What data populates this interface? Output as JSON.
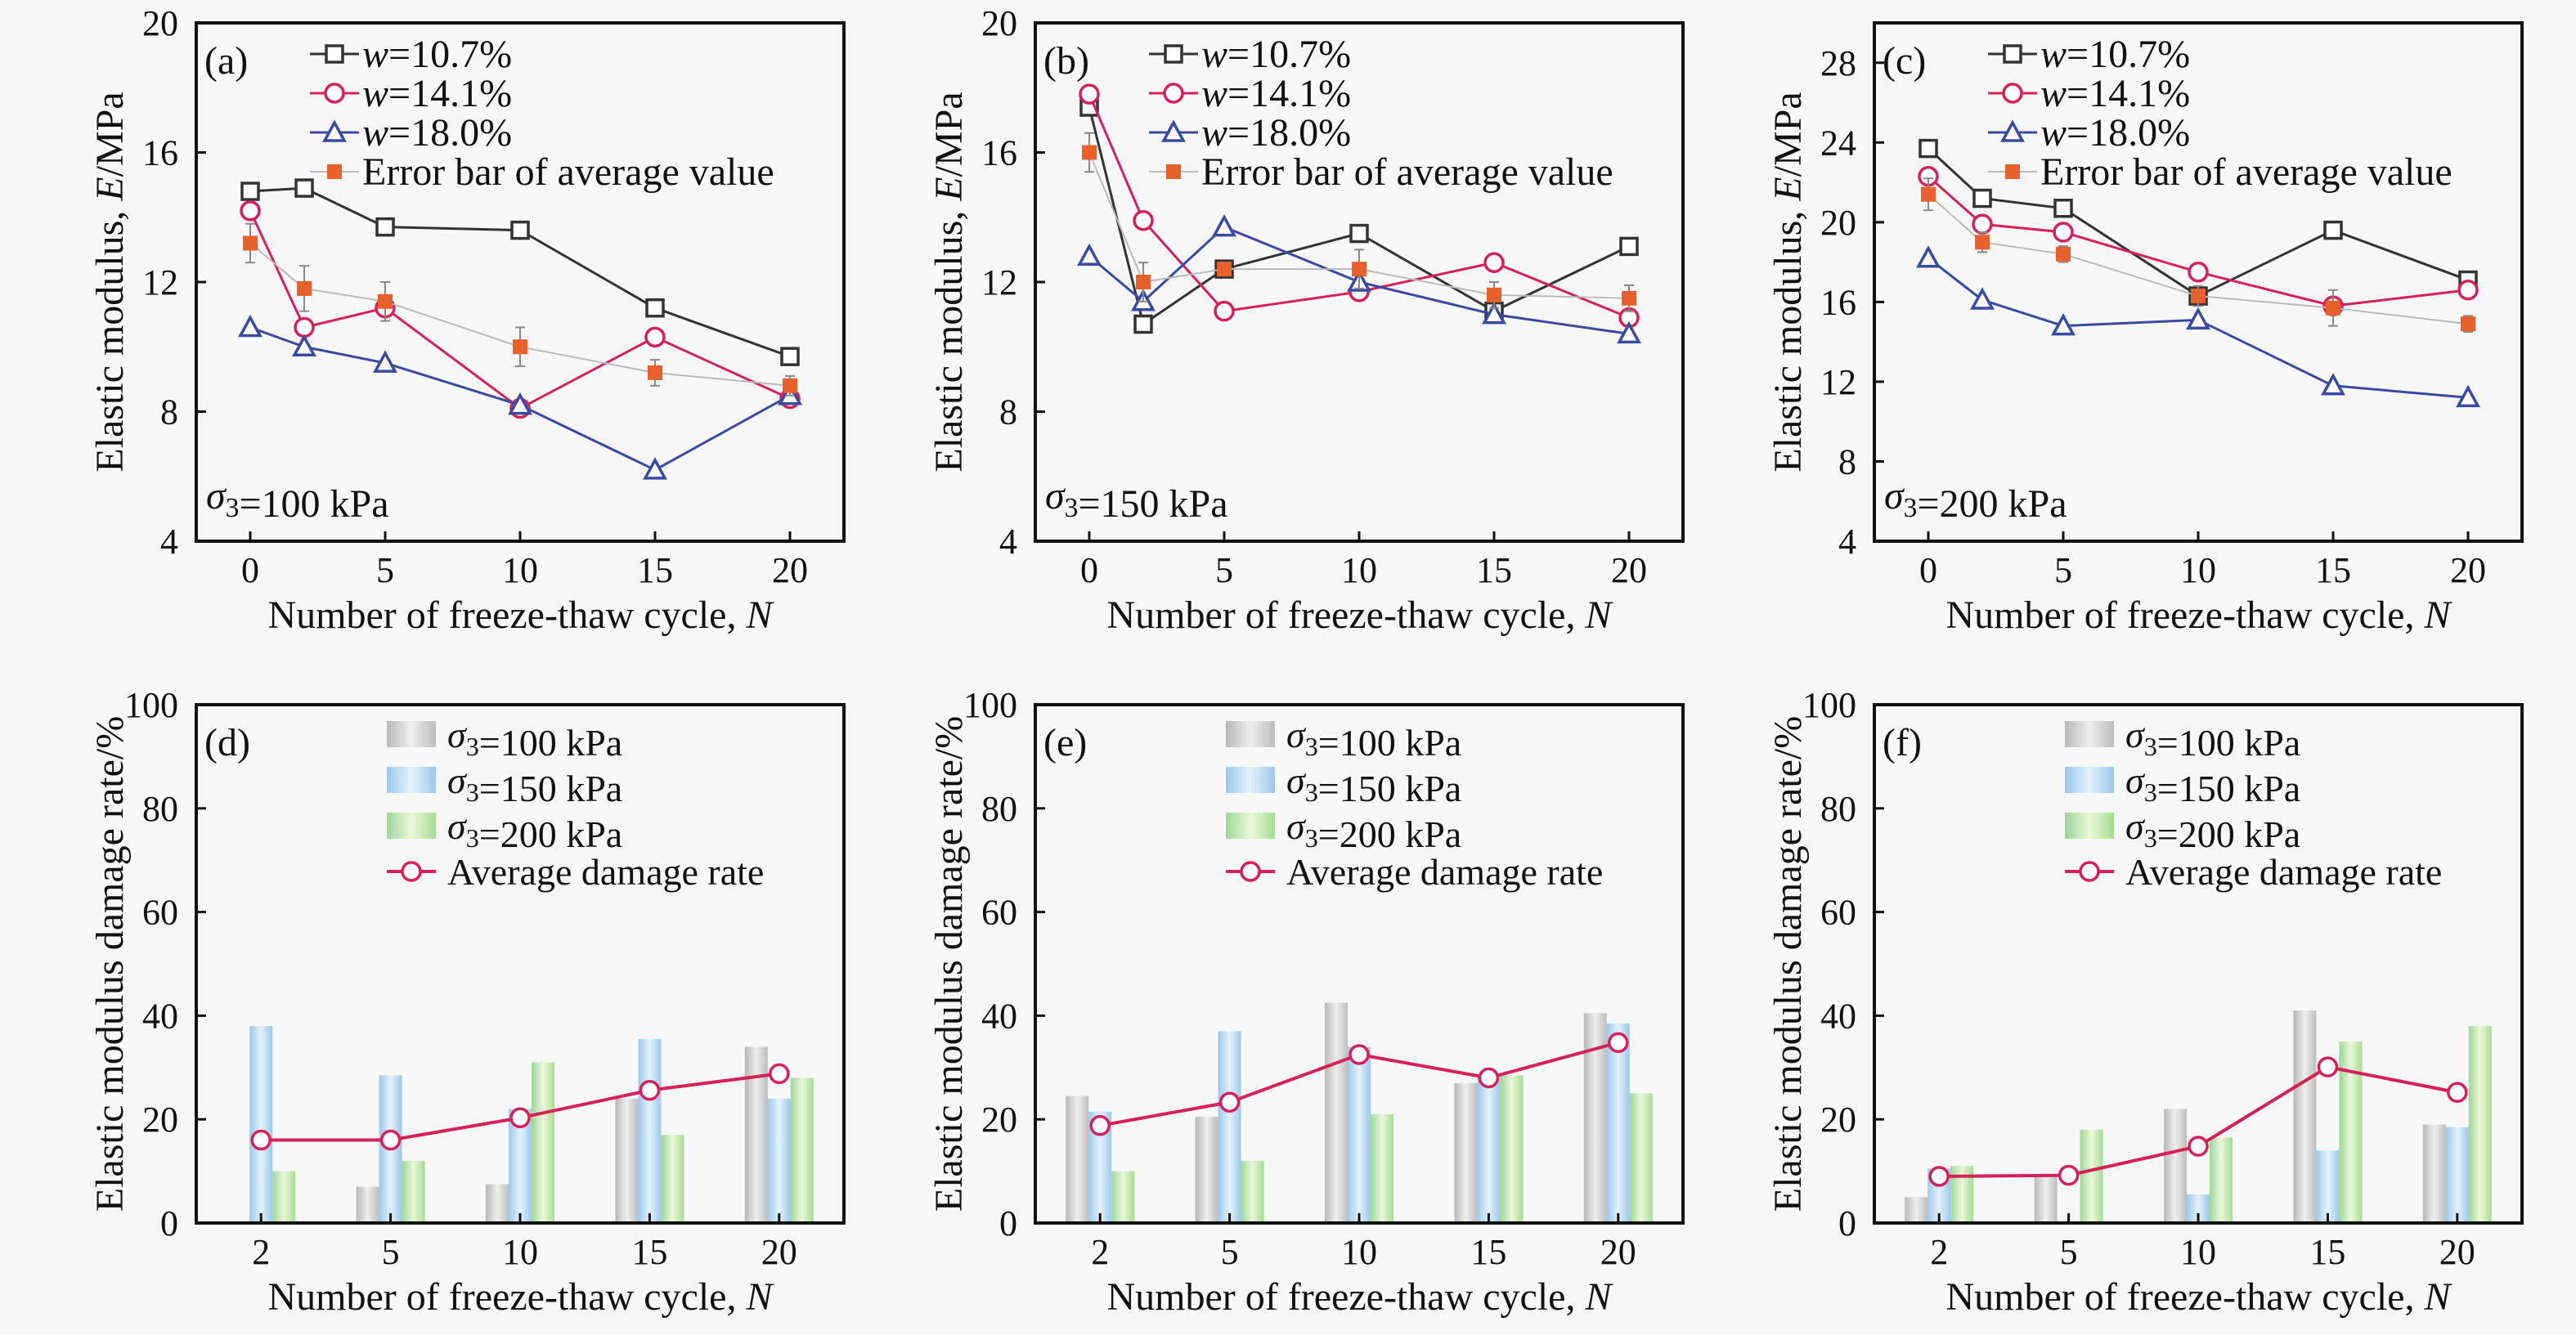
{
  "colors": {
    "w107": "#333333",
    "w141": "#d6205a",
    "w180": "#3a4aa0",
    "average": "#e8602c",
    "average_line": "#d6205a",
    "bar100": "#c8c8c8",
    "bar150": "#a8d4f0",
    "bar200": "#a8e0a0"
  },
  "chart_data": [
    {
      "panel": "(a)",
      "type": "line",
      "ylabel": [
        {
          "t": "Elastic modulus, "
        },
        {
          "t": "E",
          "i": true
        },
        {
          "t": "/MPa"
        }
      ],
      "xlabel": [
        {
          "t": "Number of freeze-thaw cycle, "
        },
        {
          "t": "N",
          "i": true
        }
      ],
      "annotation": [
        {
          "t": "σ",
          "i": true
        },
        {
          "t": "3",
          "sub": true
        },
        {
          "t": "=100 kPa"
        }
      ],
      "x": [
        0,
        2,
        5,
        10,
        15,
        20
      ],
      "xticks": [
        0,
        5,
        10,
        15,
        20
      ],
      "xlim": [
        -2,
        22
      ],
      "ylim": [
        4,
        20
      ],
      "yticks": [
        4,
        8,
        12,
        16,
        20
      ],
      "legend": "top-left",
      "grid": false,
      "series": [
        {
          "name": [
            {
              "t": "w",
              "i": true
            },
            {
              "t": "=10.7%"
            }
          ],
          "marker": "square",
          "color_key": "w107",
          "values": [
            14.8,
            14.9,
            13.7,
            13.6,
            11.2,
            9.7
          ]
        },
        {
          "name": [
            {
              "t": "w",
              "i": true
            },
            {
              "t": "=14.1%"
            }
          ],
          "marker": "circle",
          "color_key": "w141",
          "values": [
            14.2,
            10.6,
            11.2,
            8.1,
            10.3,
            8.4
          ]
        },
        {
          "name": [
            {
              "t": "w",
              "i": true
            },
            {
              "t": "=18.0%"
            }
          ],
          "marker": "triangle",
          "color_key": "w180",
          "values": [
            10.6,
            10.0,
            9.5,
            8.2,
            6.2,
            8.5
          ]
        },
        {
          "name": [
            {
              "t": "Error bar of average value"
            }
          ],
          "marker": "filled-square",
          "color_key": "average",
          "values": [
            13.2,
            11.8,
            11.4,
            10.0,
            9.2,
            8.8
          ],
          "error": [
            0.6,
            0.7,
            0.6,
            0.6,
            0.4,
            0.3
          ]
        }
      ]
    },
    {
      "panel": "(b)",
      "type": "line",
      "ylabel": [
        {
          "t": "Elastic modulus, "
        },
        {
          "t": "E",
          "i": true
        },
        {
          "t": "/MPa"
        }
      ],
      "xlabel": [
        {
          "t": "Number of freeze-thaw cycle, "
        },
        {
          "t": "N",
          "i": true
        }
      ],
      "annotation": [
        {
          "t": "σ",
          "i": true
        },
        {
          "t": "3",
          "sub": true
        },
        {
          "t": "=150 kPa"
        }
      ],
      "x": [
        0,
        2,
        5,
        10,
        15,
        20
      ],
      "xticks": [
        0,
        5,
        10,
        15,
        20
      ],
      "xlim": [
        -2,
        22
      ],
      "ylim": [
        4,
        20
      ],
      "yticks": [
        4,
        8,
        12,
        16,
        20
      ],
      "legend": "top-left",
      "grid": false,
      "series": [
        {
          "name": [
            {
              "t": "w",
              "i": true
            },
            {
              "t": "=10.7%"
            }
          ],
          "marker": "square",
          "color_key": "w107",
          "values": [
            17.4,
            10.7,
            12.4,
            13.5,
            11.1,
            13.1
          ]
        },
        {
          "name": [
            {
              "t": "w",
              "i": true
            },
            {
              "t": "=14.1%"
            }
          ],
          "marker": "circle",
          "color_key": "w141",
          "values": [
            17.8,
            13.9,
            11.1,
            11.7,
            12.6,
            10.9
          ]
        },
        {
          "name": [
            {
              "t": "w",
              "i": true
            },
            {
              "t": "=18.0%"
            }
          ],
          "marker": "triangle",
          "color_key": "w180",
          "values": [
            12.8,
            11.4,
            13.7,
            12.0,
            11.0,
            10.4
          ]
        },
        {
          "name": [
            {
              "t": "Error bar of average value"
            }
          ],
          "marker": "filled-square",
          "color_key": "average",
          "values": [
            16.0,
            12.0,
            12.4,
            12.4,
            11.6,
            11.5
          ],
          "error": [
            0.6,
            0.6,
            0.2,
            0.6,
            0.4,
            0.4
          ]
        }
      ]
    },
    {
      "panel": "(c)",
      "type": "line",
      "ylabel": [
        {
          "t": "Elastic modulus, "
        },
        {
          "t": "E",
          "i": true
        },
        {
          "t": "/MPa"
        }
      ],
      "xlabel": [
        {
          "t": "Number of freeze-thaw cycle, "
        },
        {
          "t": "N",
          "i": true
        }
      ],
      "annotation": [
        {
          "t": "σ",
          "i": true
        },
        {
          "t": "3",
          "sub": true
        },
        {
          "t": "=200 kPa"
        }
      ],
      "x": [
        0,
        2,
        5,
        10,
        15,
        20
      ],
      "xticks": [
        0,
        5,
        10,
        15,
        20
      ],
      "xlim": [
        -2,
        22
      ],
      "ylim": [
        4,
        30
      ],
      "yticks": [
        4,
        8,
        12,
        16,
        20,
        24,
        28
      ],
      "legend": "top-left",
      "grid": false,
      "series": [
        {
          "name": [
            {
              "t": "w",
              "i": true
            },
            {
              "t": "=10.7%"
            }
          ],
          "marker": "square",
          "color_key": "w107",
          "values": [
            23.7,
            21.2,
            20.7,
            16.3,
            19.6,
            17.1
          ]
        },
        {
          "name": [
            {
              "t": "w",
              "i": true
            },
            {
              "t": "=14.1%"
            }
          ],
          "marker": "circle",
          "color_key": "w141",
          "values": [
            22.3,
            19.9,
            19.5,
            17.5,
            15.8,
            16.6
          ]
        },
        {
          "name": [
            {
              "t": "w",
              "i": true
            },
            {
              "t": "=18.0%"
            }
          ],
          "marker": "triangle",
          "color_key": "w180",
          "values": [
            18.2,
            16.1,
            14.8,
            15.1,
            11.8,
            11.2
          ]
        },
        {
          "name": [
            {
              "t": "Error bar of average value"
            }
          ],
          "marker": "filled-square",
          "color_key": "average",
          "values": [
            21.4,
            19.0,
            18.4,
            16.3,
            15.7,
            14.9
          ],
          "error": [
            0.8,
            0.5,
            0.4,
            0.5,
            0.9,
            0.4
          ]
        }
      ]
    },
    {
      "panel": "(d)",
      "type": "bar",
      "ylabel": [
        {
          "t": "Elastic modulus damage rate/%"
        }
      ],
      "xlabel": [
        {
          "t": "Number of freeze-thaw cycle, "
        },
        {
          "t": "N",
          "i": true
        }
      ],
      "categories": [
        "2",
        "5",
        "10",
        "15",
        "20"
      ],
      "ylim": [
        0,
        100
      ],
      "yticks": [
        0,
        20,
        40,
        60,
        80,
        100
      ],
      "legend": "top-left",
      "grid": false,
      "series": [
        {
          "name": [
            {
              "t": "σ",
              "i": true
            },
            {
              "t": "3",
              "sub": true
            },
            {
              "t": "=100 kPa"
            }
          ],
          "color_key": "bar100",
          "values": [
            0,
            7,
            7.5,
            24,
            34
          ]
        },
        {
          "name": [
            {
              "t": "σ",
              "i": true
            },
            {
              "t": "3",
              "sub": true
            },
            {
              "t": "=150 kPa"
            }
          ],
          "color_key": "bar150",
          "values": [
            38,
            28.5,
            22,
            35.5,
            24
          ]
        },
        {
          "name": [
            {
              "t": "σ",
              "i": true
            },
            {
              "t": "3",
              "sub": true
            },
            {
              "t": "=200 kPa"
            }
          ],
          "color_key": "bar200",
          "values": [
            10,
            12,
            31,
            17,
            28
          ]
        }
      ],
      "average": {
        "name": [
          {
            "t": "Average damage rate"
          }
        ],
        "color_key": "average_line",
        "values": [
          16.0,
          16.0,
          20.3,
          25.6,
          28.8
        ]
      }
    },
    {
      "panel": "(e)",
      "type": "bar",
      "ylabel": [
        {
          "t": "Elastic modulus damage rate/%"
        }
      ],
      "xlabel": [
        {
          "t": "Number of freeze-thaw cycle, "
        },
        {
          "t": "N",
          "i": true
        }
      ],
      "categories": [
        "2",
        "5",
        "10",
        "15",
        "20"
      ],
      "ylim": [
        0,
        100
      ],
      "yticks": [
        0,
        20,
        40,
        60,
        80,
        100
      ],
      "legend": "top-left",
      "grid": false,
      "series": [
        {
          "name": [
            {
              "t": "σ",
              "i": true
            },
            {
              "t": "3",
              "sub": true
            },
            {
              "t": "=100 kPa"
            }
          ],
          "color_key": "bar100",
          "values": [
            24.5,
            20.5,
            42.5,
            27,
            40.5
          ]
        },
        {
          "name": [
            {
              "t": "σ",
              "i": true
            },
            {
              "t": "3",
              "sub": true
            },
            {
              "t": "=150 kPa"
            }
          ],
          "color_key": "bar150",
          "values": [
            21.5,
            37,
            34,
            28,
            38.5
          ]
        },
        {
          "name": [
            {
              "t": "σ",
              "i": true
            },
            {
              "t": "3",
              "sub": true
            },
            {
              "t": "=200 kPa"
            }
          ],
          "color_key": "bar200",
          "values": [
            10,
            12,
            21,
            28.5,
            25
          ]
        }
      ],
      "average": {
        "name": [
          {
            "t": "Average damage rate"
          }
        ],
        "color_key": "average_line",
        "values": [
          18.8,
          23.3,
          32.5,
          28.0,
          34.8
        ]
      }
    },
    {
      "panel": "(f)",
      "type": "bar",
      "ylabel": [
        {
          "t": "Elastic modulus damage rate/%"
        }
      ],
      "xlabel": [
        {
          "t": "Number of freeze-thaw cycle, "
        },
        {
          "t": "N",
          "i": true
        }
      ],
      "categories": [
        "2",
        "5",
        "10",
        "15",
        "20"
      ],
      "ylim": [
        0,
        100
      ],
      "yticks": [
        0,
        20,
        40,
        60,
        80,
        100
      ],
      "legend": "top-left",
      "grid": false,
      "series": [
        {
          "name": [
            {
              "t": "σ",
              "i": true
            },
            {
              "t": "3",
              "sub": true
            },
            {
              "t": "=100 kPa"
            }
          ],
          "color_key": "bar100",
          "values": [
            5,
            9,
            22,
            41,
            19
          ]
        },
        {
          "name": [
            {
              "t": "σ",
              "i": true
            },
            {
              "t": "3",
              "sub": true
            },
            {
              "t": "=150 kPa"
            }
          ],
          "color_key": "bar150",
          "values": [
            10.5,
            0,
            5.5,
            14,
            18.5
          ]
        },
        {
          "name": [
            {
              "t": "σ",
              "i": true
            },
            {
              "t": "3",
              "sub": true
            },
            {
              "t": "=200 kPa"
            }
          ],
          "color_key": "bar200",
          "values": [
            11,
            18,
            16.5,
            35,
            38
          ]
        }
      ],
      "average": {
        "name": [
          {
            "t": "Average damage rate"
          }
        ],
        "color_key": "average_line",
        "values": [
          9.0,
          9.2,
          14.8,
          30.1,
          25.2
        ]
      }
    }
  ]
}
